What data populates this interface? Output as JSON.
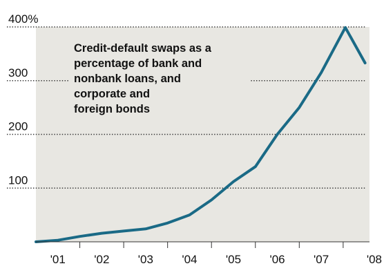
{
  "chart_data": {
    "type": "line",
    "title": "",
    "annotation": "Credit-default swaps as a percentage of bank and nonbank loans, and corporate and foreign bonds",
    "annotation_lines": [
      "Credit-default swaps as a",
      "percentage of bank and",
      "nonbank loans, and",
      "corporate and",
      "foreign bonds"
    ],
    "xlabel": "",
    "ylabel": "",
    "ylim": [
      0,
      400
    ],
    "xlim": [
      2000.5,
      2008.1
    ],
    "y_ticks": [
      {
        "value": 100,
        "label": "100"
      },
      {
        "value": 200,
        "label": "200"
      },
      {
        "value": 300,
        "label": "300"
      },
      {
        "value": 400,
        "label": "400%"
      }
    ],
    "x_ticks": [
      {
        "value": 2001,
        "label": "'01"
      },
      {
        "value": 2002,
        "label": "'02"
      },
      {
        "value": 2003,
        "label": "'03"
      },
      {
        "value": 2004,
        "label": "'04"
      },
      {
        "value": 2005,
        "label": "'05"
      },
      {
        "value": 2006,
        "label": "'06"
      },
      {
        "value": 2007,
        "label": "'07"
      },
      {
        "value": 2008,
        "label": "'08"
      }
    ],
    "grid": true,
    "colors": {
      "line": "#1a6a86",
      "plot_background": "#e8e7e2",
      "grid": "#333333",
      "axis": "#333333",
      "text": "#111111"
    },
    "series": [
      {
        "x": [
          2000.5,
          2001.0,
          2001.5,
          2002.0,
          2002.5,
          2003.0,
          2003.5,
          2004.0,
          2004.5,
          2005.0,
          2005.5,
          2006.0,
          2006.5,
          2007.0,
          2007.55,
          2008.0
        ],
        "values": [
          0,
          3,
          10,
          16,
          20,
          24,
          35,
          50,
          78,
          112,
          140,
          200,
          250,
          315,
          399,
          333
        ]
      }
    ]
  }
}
